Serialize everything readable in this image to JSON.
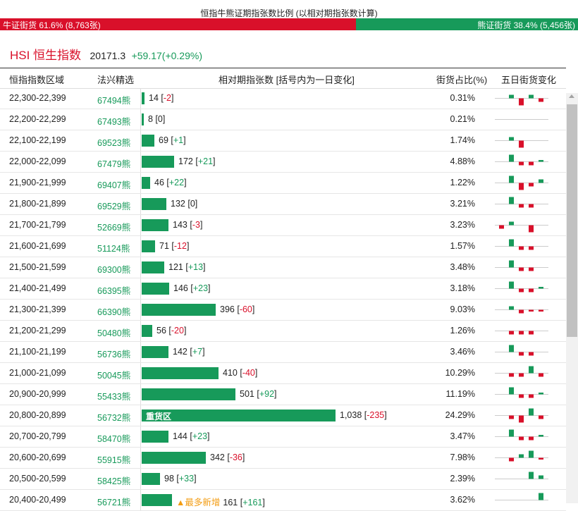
{
  "title": "恒指牛熊证期指张数比例 (以相对期指张数计算)",
  "ratio": {
    "bull_label": "牛证街货 61.6% (8,763张)",
    "bear_label": "熊证街货 38.4% (5,456张)",
    "bull_fraction": 0.616,
    "bull_color": "#d9102a",
    "bear_color": "#179a5a"
  },
  "index": {
    "name": "HSI 恒生指数",
    "price": "20171.3",
    "change": "+59.17(+0.29%)"
  },
  "headers": {
    "zone": "恒指指数区域",
    "pick": "法兴精选",
    "contracts": "相对期指张数 [括号内为一日变化]",
    "pct": "街货占比(%)",
    "trend": "五日街货变化"
  },
  "rows": [
    {
      "zone": "22,300-22,399",
      "code": "67494熊",
      "count": "14",
      "chg": "-2",
      "pct": "0.31%",
      "value": 14,
      "spark": [
        0,
        1,
        -2,
        1,
        -1
      ]
    },
    {
      "zone": "22,200-22,299",
      "code": "67493熊",
      "count": "8",
      "chg": "0",
      "pct": "0.21%",
      "value": 8,
      "spark": [
        0,
        0,
        0,
        0,
        0
      ]
    },
    {
      "zone": "22,100-22,199",
      "code": "69523熊",
      "count": "69",
      "chg": "+1",
      "pct": "1.74%",
      "value": 69,
      "spark": [
        0,
        1,
        -2,
        0,
        0
      ]
    },
    {
      "zone": "22,000-22,099",
      "code": "67479熊",
      "count": "172",
      "chg": "+21",
      "pct": "4.88%",
      "value": 172,
      "spark": [
        0,
        2,
        -1,
        -1,
        0.5
      ]
    },
    {
      "zone": "21,900-21,999",
      "code": "69407熊",
      "count": "46",
      "chg": "+22",
      "pct": "1.22%",
      "value": 46,
      "spark": [
        0,
        2,
        -2,
        -1,
        1
      ]
    },
    {
      "zone": "21,800-21,899",
      "code": "69529熊",
      "count": "132",
      "chg": "0",
      "pct": "3.21%",
      "value": 132,
      "spark": [
        0,
        2,
        -1,
        -1,
        0
      ]
    },
    {
      "zone": "21,700-21,799",
      "code": "52669熊",
      "count": "143",
      "chg": "-3",
      "pct": "3.23%",
      "value": 143,
      "spark": [
        -1,
        1,
        0,
        -2,
        0
      ]
    },
    {
      "zone": "21,600-21,699",
      "code": "51124熊",
      "count": "71",
      "chg": "-12",
      "pct": "1.57%",
      "value": 71,
      "spark": [
        0,
        2,
        -1,
        -1,
        0
      ]
    },
    {
      "zone": "21,500-21,599",
      "code": "69300熊",
      "count": "121",
      "chg": "+13",
      "pct": "3.48%",
      "value": 121,
      "spark": [
        0,
        2,
        -1,
        -1,
        0
      ]
    },
    {
      "zone": "21,400-21,499",
      "code": "66395熊",
      "count": "146",
      "chg": "+23",
      "pct": "3.18%",
      "value": 146,
      "spark": [
        0,
        2,
        -1,
        -1,
        0.5
      ]
    },
    {
      "zone": "21,300-21,399",
      "code": "66390熊",
      "count": "396",
      "chg": "-60",
      "pct": "9.03%",
      "value": 396,
      "spark": [
        0,
        1,
        -1,
        -0.5,
        -0.5
      ]
    },
    {
      "zone": "21,200-21,299",
      "code": "50480熊",
      "count": "56",
      "chg": "-20",
      "pct": "1.26%",
      "value": 56,
      "spark": [
        0,
        -1,
        -1,
        -1,
        0
      ]
    },
    {
      "zone": "21,100-21,199",
      "code": "56736熊",
      "count": "142",
      "chg": "+7",
      "pct": "3.46%",
      "value": 142,
      "spark": [
        0,
        2,
        -1,
        -1,
        0
      ]
    },
    {
      "zone": "21,000-21,099",
      "code": "50045熊",
      "count": "410",
      "chg": "-40",
      "pct": "10.29%",
      "value": 410,
      "spark": [
        0,
        -1,
        -1,
        2,
        -1
      ]
    },
    {
      "zone": "20,900-20,999",
      "code": "55433熊",
      "count": "501",
      "chg": "+92",
      "pct": "11.19%",
      "value": 501,
      "spark": [
        0,
        2,
        -1,
        -1,
        0.5
      ]
    },
    {
      "zone": "20,800-20,899",
      "code": "56732熊",
      "count": "1,038",
      "chg": "-235",
      "pct": "24.29%",
      "value": 1038,
      "tag": "重货区",
      "spark": [
        0,
        -1,
        -2,
        2,
        -1
      ]
    },
    {
      "zone": "20,700-20,799",
      "code": "58470熊",
      "count": "144",
      "chg": "+23",
      "pct": "3.47%",
      "value": 144,
      "spark": [
        0,
        2,
        -1,
        -1,
        0.5
      ]
    },
    {
      "zone": "20,600-20,699",
      "code": "55915熊",
      "count": "342",
      "chg": "-36",
      "pct": "7.98%",
      "value": 342,
      "spark": [
        0,
        -1,
        1,
        2,
        -0.5
      ]
    },
    {
      "zone": "20,500-20,599",
      "code": "58425熊",
      "count": "98",
      "chg": "+33",
      "pct": "2.39%",
      "value": 98,
      "spark": [
        0,
        0,
        0,
        2,
        1
      ]
    },
    {
      "zone": "20,400-20,499",
      "code": "56721熊",
      "count": "161",
      "chg": "+161",
      "pct": "3.62%",
      "value": 161,
      "new": "▲最多新增",
      "spark": [
        0,
        0,
        0,
        0,
        2
      ]
    }
  ]
}
